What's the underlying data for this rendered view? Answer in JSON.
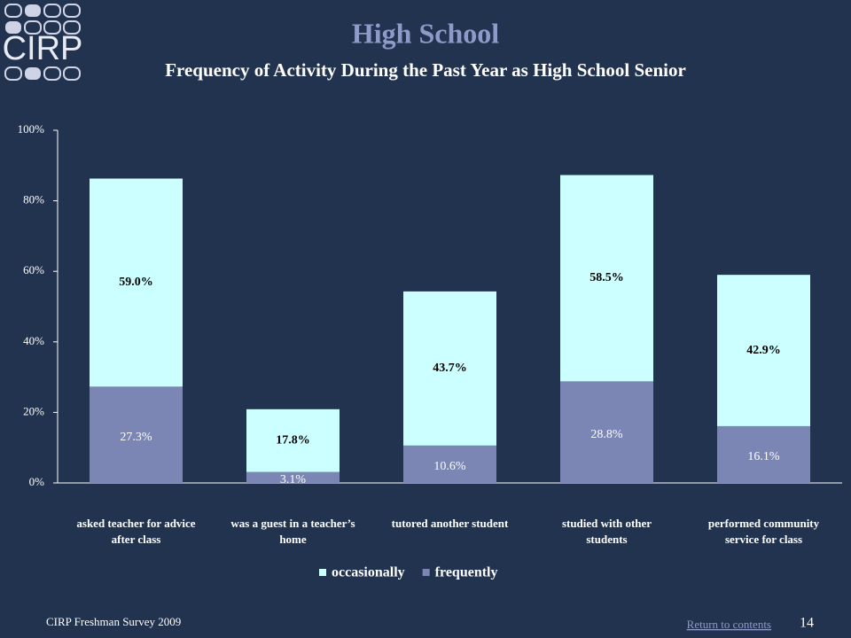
{
  "logo": "CIRP",
  "chart_data": {
    "type": "stacked_bar",
    "title": "High School",
    "subtitle": "Frequency of Activity During the Past Year as High School Senior",
    "categories": [
      "asked teacher for advice after class",
      "was a guest in a teacher’s home",
      "tutored another student",
      "studied with other students",
      "performed community service for class"
    ],
    "series": [
      {
        "name": "occasionally",
        "color": "#ccffff",
        "values": [
          59.0,
          17.8,
          43.7,
          58.5,
          42.9
        ],
        "value_labels": [
          "59.0%",
          "17.8%",
          "43.7%",
          "58.5%",
          "42.9%"
        ]
      },
      {
        "name": "frequently",
        "color": "#7b86b4",
        "values": [
          27.3,
          3.1,
          10.6,
          28.8,
          16.1
        ],
        "value_labels": [
          "27.3%",
          "3.1%",
          "10.6%",
          "28.8%",
          "16.1%"
        ]
      }
    ],
    "ylim": [
      0,
      100
    ],
    "yticks": [
      {
        "value": 0,
        "label": "0%"
      },
      {
        "value": 20,
        "label": "20%"
      },
      {
        "value": 40,
        "label": "40%"
      },
      {
        "value": 60,
        "label": "60%"
      },
      {
        "value": 80,
        "label": "80%"
      },
      {
        "value": 100,
        "label": "100%"
      }
    ],
    "legend": "bottom"
  },
  "footer": {
    "source": "CIRP Freshman Survey 2009",
    "link": "Return to contents",
    "page": "14"
  }
}
